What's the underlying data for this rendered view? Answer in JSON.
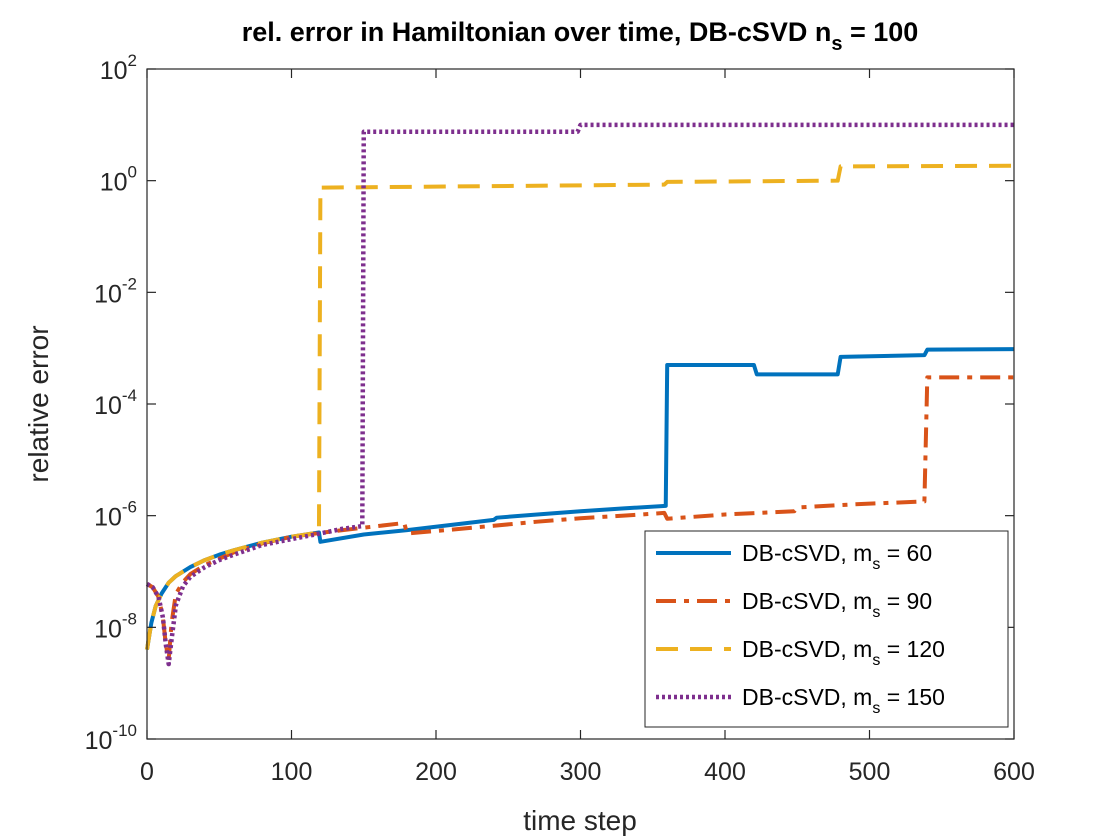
{
  "chart_data": {
    "type": "line",
    "title": {
      "main": "rel. error in Hamiltonian over time, DB-cSVD n",
      "subscript": "s",
      "suffix": " = 100"
    },
    "xlabel": "time step",
    "ylabel": "relative error",
    "yscale": "log",
    "xlim": [
      0,
      600
    ],
    "ylim": [
      1e-10,
      100
    ],
    "xticks": [
      0,
      100,
      200,
      300,
      400,
      500,
      600
    ],
    "xtick_labels": [
      "0",
      "100",
      "200",
      "300",
      "400",
      "500",
      "600"
    ],
    "yticks": [
      {
        "value": 1e-10,
        "base": "10",
        "exp": "-10"
      },
      {
        "value": 1e-08,
        "base": "10",
        "exp": "-8"
      },
      {
        "value": 1e-06,
        "base": "10",
        "exp": "-6"
      },
      {
        "value": 0.0001,
        "base": "10",
        "exp": "-4"
      },
      {
        "value": 0.01,
        "base": "10",
        "exp": "-2"
      },
      {
        "value": 1,
        "base": "10",
        "exp": "0"
      },
      {
        "value": 100,
        "base": "10",
        "exp": "2"
      }
    ],
    "grid": false,
    "legend_position": "bottom-right",
    "series": [
      {
        "name": "DB-cSVD, m",
        "legend_sub": "s",
        "legend_suffix": " = 60",
        "color": "#0072BD",
        "dash": "solid",
        "points": [
          [
            0,
            4e-09
          ],
          [
            3,
            1.2e-08
          ],
          [
            6,
            2.4e-08
          ],
          [
            10,
            4e-08
          ],
          [
            15,
            6.3e-08
          ],
          [
            20,
            8.3e-08
          ],
          [
            30,
            1.2e-07
          ],
          [
            40,
            1.6e-07
          ],
          [
            50,
            2e-07
          ],
          [
            60,
            2.4e-07
          ],
          [
            80,
            3.3e-07
          ],
          [
            100,
            4.2e-07
          ],
          [
            119,
            5e-07
          ],
          [
            120,
            3.4e-07
          ],
          [
            150,
            4.6e-07
          ],
          [
            180,
            5.5e-07
          ],
          [
            210,
            6.8e-07
          ],
          [
            240,
            8.4e-07
          ],
          [
            242,
            9.2e-07
          ],
          [
            270,
            1.05e-06
          ],
          [
            300,
            1.2e-06
          ],
          [
            330,
            1.35e-06
          ],
          [
            359,
            1.5e-06
          ],
          [
            360,
            0.0005
          ],
          [
            420,
            0.0005
          ],
          [
            422,
            0.00034
          ],
          [
            478,
            0.00034
          ],
          [
            480,
            0.0007
          ],
          [
            538,
            0.00075
          ],
          [
            540,
            0.00094
          ],
          [
            600,
            0.00096
          ]
        ]
      },
      {
        "name": "DB-cSVD, m",
        "legend_sub": "s",
        "legend_suffix": " = 90",
        "color": "#D95319",
        "dash": "dashdot",
        "points": [
          [
            0,
            6e-08
          ],
          [
            4,
            5.2e-08
          ],
          [
            8,
            3.5e-08
          ],
          [
            11,
            1.5e-08
          ],
          [
            13,
            5e-09
          ],
          [
            15,
            2.6e-09
          ],
          [
            17,
            1.2e-08
          ],
          [
            20,
            4e-08
          ],
          [
            25,
            6.5e-08
          ],
          [
            30,
            9e-08
          ],
          [
            40,
            1.3e-07
          ],
          [
            50,
            1.7e-07
          ],
          [
            60,
            2.2e-07
          ],
          [
            80,
            3.2e-07
          ],
          [
            100,
            4.2e-07
          ],
          [
            130,
            5.3e-07
          ],
          [
            155,
            6.3e-07
          ],
          [
            178,
            7.4e-07
          ],
          [
            180,
            4.8e-07
          ],
          [
            210,
            5.6e-07
          ],
          [
            240,
            6.6e-07
          ],
          [
            270,
            7.8e-07
          ],
          [
            300,
            9e-07
          ],
          [
            330,
            1e-06
          ],
          [
            358,
            1.12e-06
          ],
          [
            360,
            8.8e-07
          ],
          [
            400,
            1.05e-06
          ],
          [
            448,
            1.2e-06
          ],
          [
            450,
            1.4e-06
          ],
          [
            490,
            1.6e-06
          ],
          [
            538,
            1.8e-06
          ],
          [
            540,
            0.0003
          ],
          [
            600,
            0.0003
          ]
        ]
      },
      {
        "name": "DB-cSVD, m",
        "legend_sub": "s",
        "legend_suffix": " = 120",
        "color": "#EDB120",
        "dash": "dashed",
        "points": [
          [
            0,
            4e-09
          ],
          [
            3,
            1.2e-08
          ],
          [
            6,
            2.4e-08
          ],
          [
            10,
            4e-08
          ],
          [
            15,
            6.3e-08
          ],
          [
            20,
            8.3e-08
          ],
          [
            30,
            1.2e-07
          ],
          [
            40,
            1.6e-07
          ],
          [
            50,
            2e-07
          ],
          [
            60,
            2.4e-07
          ],
          [
            80,
            3.3e-07
          ],
          [
            100,
            4.2e-07
          ],
          [
            119,
            5e-07
          ],
          [
            120,
            0.75
          ],
          [
            358,
            0.85
          ],
          [
            360,
            0.95
          ],
          [
            478,
            1.0
          ],
          [
            480,
            1.8
          ],
          [
            600,
            1.85
          ]
        ]
      },
      {
        "name": "DB-cSVD, m",
        "legend_sub": "s",
        "legend_suffix": " = 150",
        "color": "#7E2F8E",
        "dash": "dotted",
        "points": [
          [
            0,
            6e-08
          ],
          [
            4,
            5.2e-08
          ],
          [
            8,
            3.5e-08
          ],
          [
            11,
            1.5e-08
          ],
          [
            13,
            5e-09
          ],
          [
            15,
            2.2e-09
          ],
          [
            17,
            6e-09
          ],
          [
            20,
            2.5e-08
          ],
          [
            25,
            5.5e-08
          ],
          [
            30,
            8e-08
          ],
          [
            40,
            1.2e-07
          ],
          [
            50,
            1.6e-07
          ],
          [
            60,
            2e-07
          ],
          [
            80,
            3e-07
          ],
          [
            100,
            3.8e-07
          ],
          [
            120,
            4.8e-07
          ],
          [
            135,
            5.8e-07
          ],
          [
            149,
            6.5e-07
          ],
          [
            150,
            7.5
          ],
          [
            298,
            7.5
          ],
          [
            300,
            10
          ],
          [
            600,
            10
          ]
        ]
      }
    ]
  }
}
